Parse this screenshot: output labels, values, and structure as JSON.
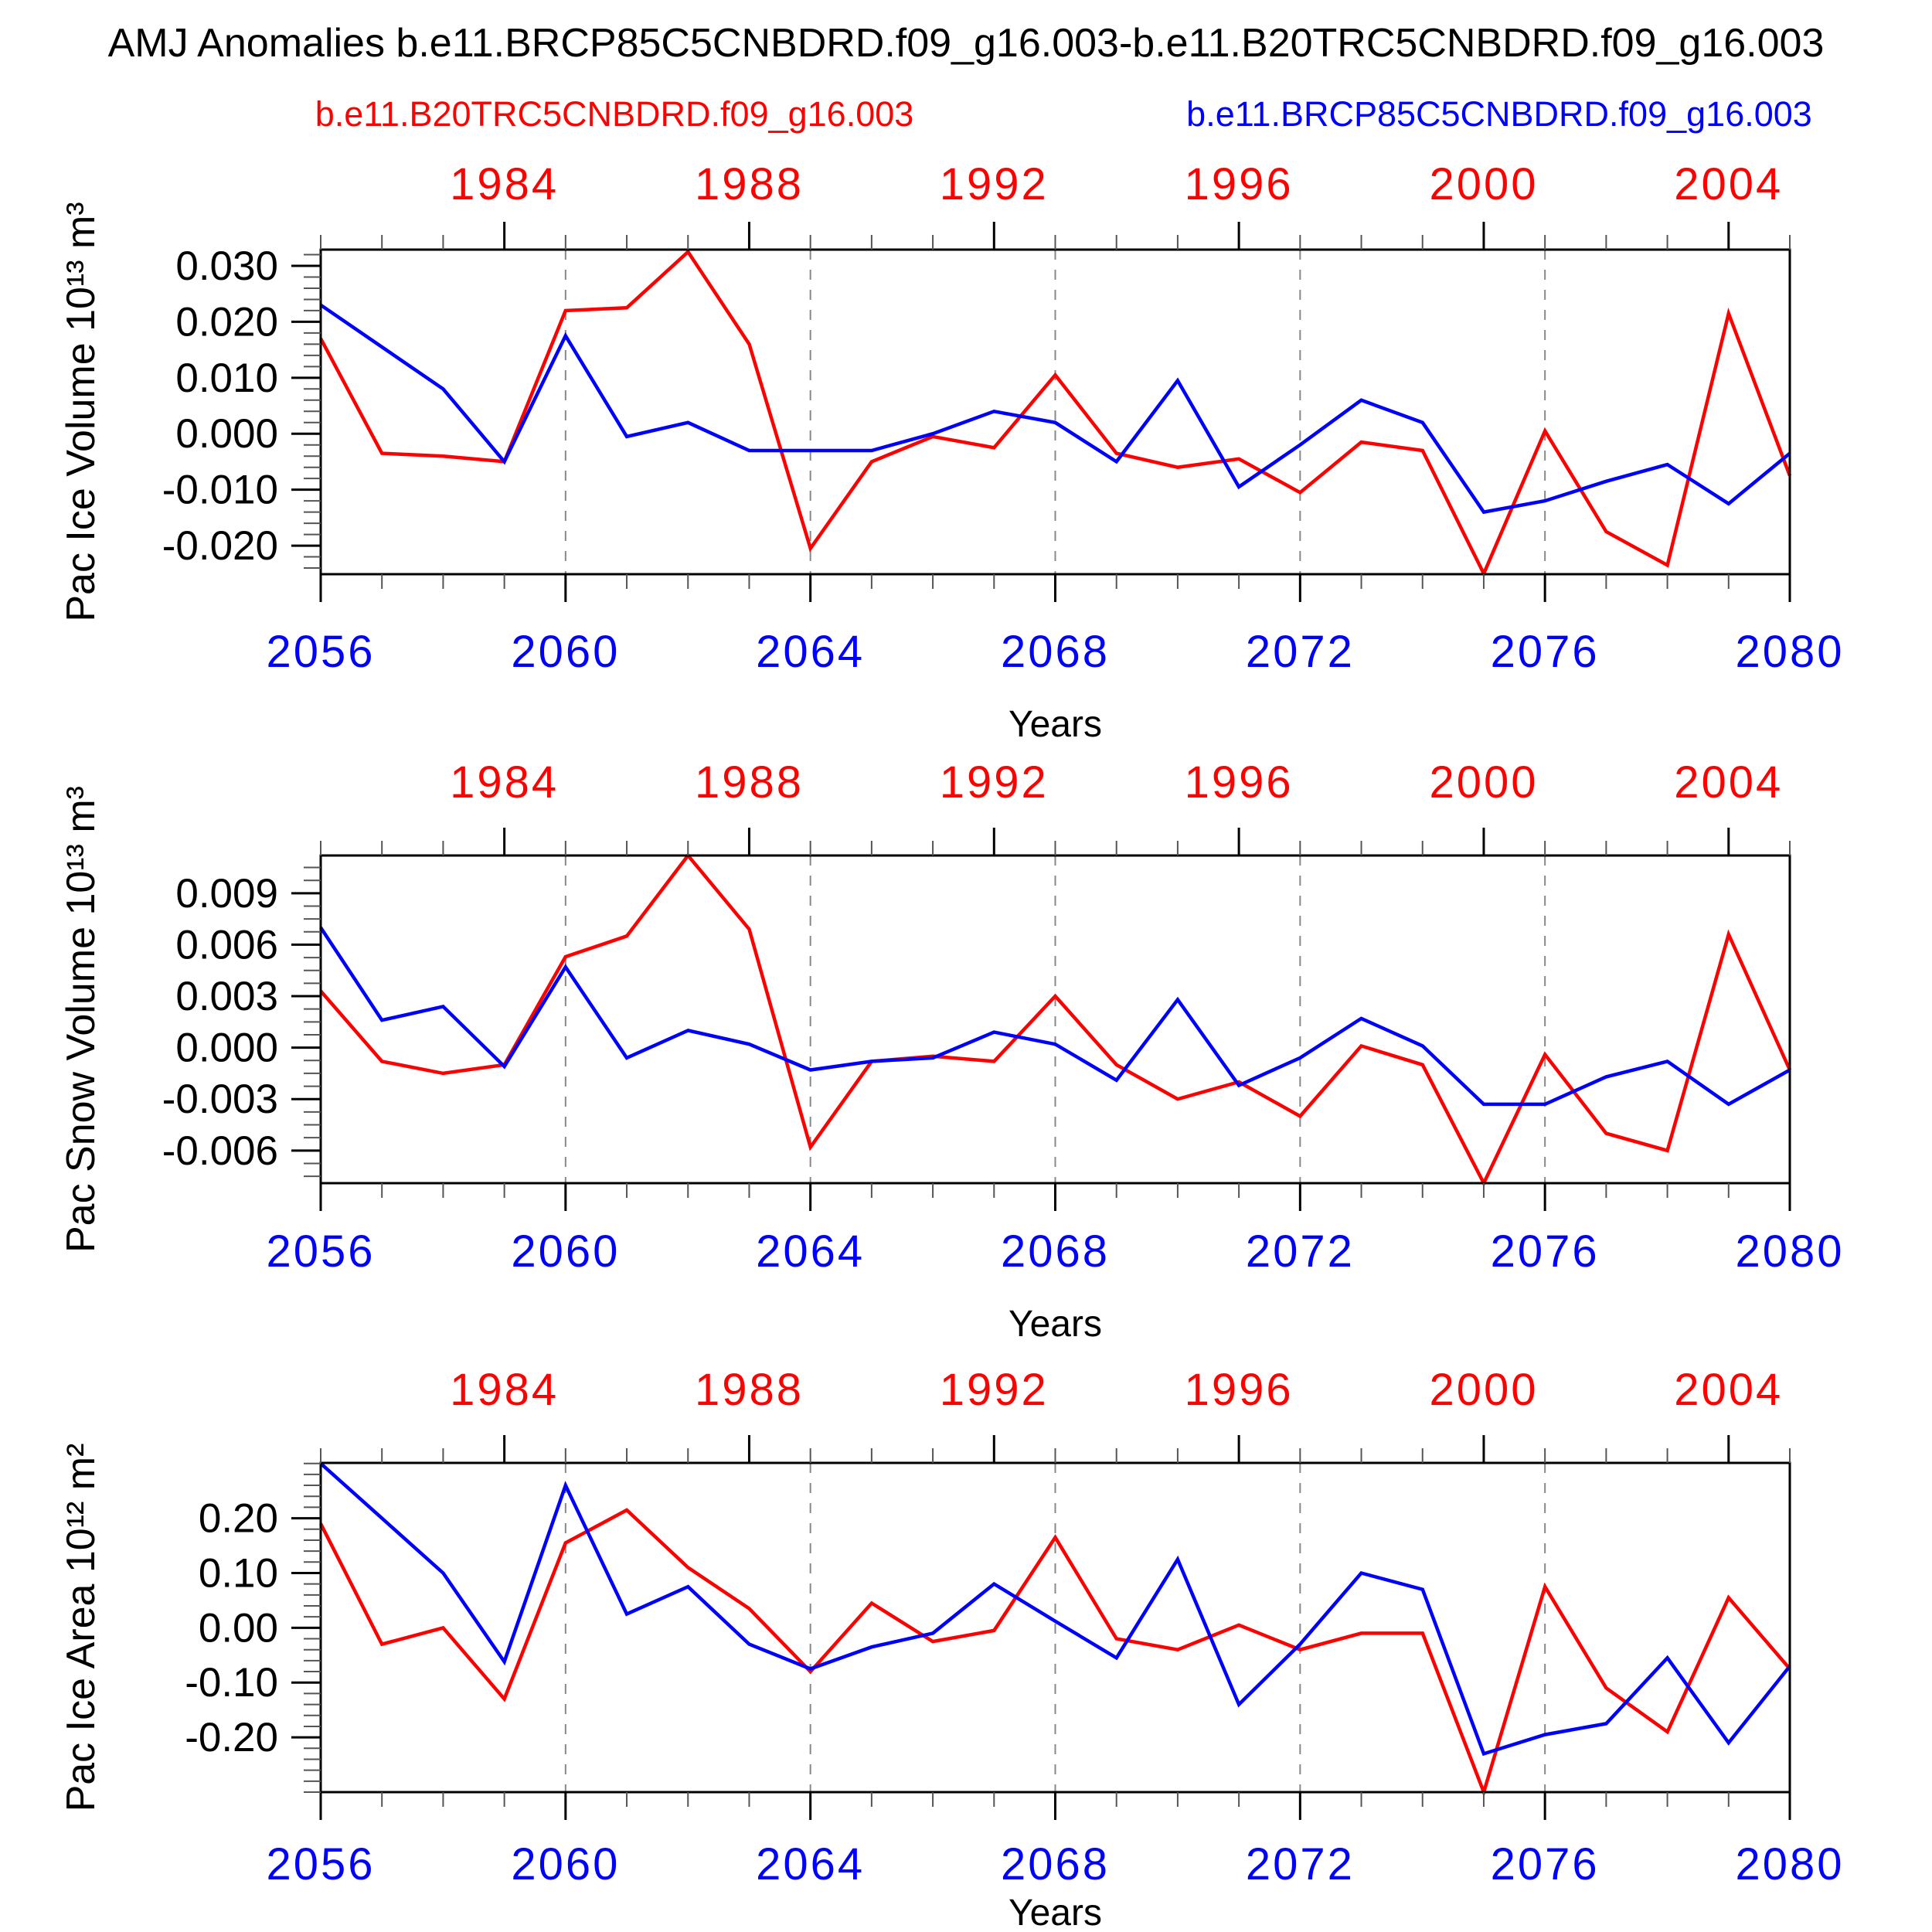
{
  "page": {
    "title": "AMJ Anomalies b.e11.BRCP85C5CNBDRD.f09_g16.003-b.e11.B20TRC5CNBDRD.f09_g16.003",
    "background": "#ffffff"
  },
  "legend": {
    "red": {
      "label": "b.e11.B20TRC5CNBDRD.f09_g16.003",
      "color": "#ff0000"
    },
    "blue": {
      "label": "b.e11.BRCP85C5CNBDRD.f09_g16.003",
      "color": "#0000ff"
    }
  },
  "colors": {
    "grid": "#888888",
    "minor_tick": "#555555",
    "axis": "#000000"
  },
  "chart_data": [
    {
      "type": "line",
      "name": "pac-ice-volume",
      "ylabel": "Pac Ice Volume 10¹³ m³",
      "xlabel": "Years",
      "ylim": [
        -0.0251,
        0.0329
      ],
      "ytick_labels": [
        "0.030",
        "0.020",
        "0.010",
        "0.000",
        "-0.010",
        "-0.020"
      ],
      "ytick_values": [
        0.03,
        0.02,
        0.01,
        0.0,
        -0.01,
        -0.02
      ],
      "y_minor_step": 0.002,
      "x_top": {
        "color": "#ff0000",
        "year_start": 1981,
        "year_end": 2005,
        "tick_labels": [
          "1984",
          "1988",
          "1992",
          "1996",
          "2000",
          "2004"
        ],
        "tick_years": [
          1984,
          1988,
          1992,
          1996,
          2000,
          2004
        ]
      },
      "x_bottom": {
        "color": "#0000ff",
        "year_start": 2056,
        "year_end": 2080,
        "tick_labels": [
          "2056",
          "2060",
          "2064",
          "2068",
          "2072",
          "2076",
          "2080"
        ],
        "tick_years": [
          2056,
          2060,
          2064,
          2068,
          2072,
          2076,
          2080
        ]
      },
      "grid_years": [
        2060,
        2064,
        2068,
        2072,
        2076
      ],
      "series": [
        {
          "name": "b.e11.B20TRC5CNBDRD.f09_g16.003",
          "color": "#ff0000",
          "values": [
            0.017,
            -0.0035,
            -0.004,
            -0.005,
            0.022,
            0.0225,
            0.0325,
            0.016,
            -0.0205,
            -0.005,
            -0.0005,
            -0.0025,
            0.0105,
            -0.0035,
            -0.006,
            -0.0045,
            -0.0105,
            -0.0015,
            -0.003,
            -0.025,
            0.0005,
            -0.0175,
            -0.0235,
            0.0215,
            -0.0075
          ]
        },
        {
          "name": "b.e11.BRCP85C5CNBDRD.f09_g16.003",
          "color": "#0000ff",
          "values": [
            0.023,
            0.0155,
            0.008,
            -0.005,
            0.0175,
            -0.0005,
            0.002,
            -0.003,
            -0.003,
            -0.003,
            0.0,
            0.004,
            0.002,
            -0.005,
            0.0095,
            -0.0095,
            -0.002,
            0.006,
            0.002,
            -0.014,
            -0.012,
            -0.0085,
            -0.0055,
            -0.0125,
            -0.0035
          ]
        }
      ]
    },
    {
      "type": "line",
      "name": "pac-snow-volume",
      "ylabel": "Pac Snow Volume 10¹³ m³",
      "xlabel": "Years",
      "ylim": [
        -0.0079,
        0.0112
      ],
      "ytick_labels": [
        "0.009",
        "0.006",
        "0.003",
        "0.000",
        "-0.003",
        "-0.006"
      ],
      "ytick_values": [
        0.009,
        0.006,
        0.003,
        0.0,
        -0.003,
        -0.006
      ],
      "y_minor_step": 0.00075,
      "x_top": {
        "color": "#ff0000",
        "year_start": 1981,
        "year_end": 2005,
        "tick_labels": [
          "1984",
          "1988",
          "1992",
          "1996",
          "2000",
          "2004"
        ],
        "tick_years": [
          1984,
          1988,
          1992,
          1996,
          2000,
          2004
        ]
      },
      "x_bottom": {
        "color": "#0000ff",
        "year_start": 2056,
        "year_end": 2080,
        "tick_labels": [
          "2056",
          "2060",
          "2064",
          "2068",
          "2072",
          "2076",
          "2080"
        ],
        "tick_years": [
          2056,
          2060,
          2064,
          2068,
          2072,
          2076,
          2080
        ]
      },
      "grid_years": [
        2060,
        2064,
        2068,
        2072,
        2076
      ],
      "series": [
        {
          "name": "b.e11.B20TRC5CNBDRD.f09_g16.003",
          "color": "#ff0000",
          "values": [
            0.0033,
            -0.0008,
            -0.0015,
            -0.001,
            0.0053,
            0.0065,
            0.0112,
            0.0069,
            -0.0058,
            -0.0008,
            -0.0005,
            -0.0008,
            0.003,
            -0.001,
            -0.003,
            -0.002,
            -0.004,
            0.0001,
            -0.001,
            -0.0079,
            -0.0004,
            -0.005,
            -0.006,
            0.0066,
            -0.0013
          ]
        },
        {
          "name": "b.e11.BRCP85C5CNBDRD.f09_g16.003",
          "color": "#0000ff",
          "values": [
            0.007,
            0.0016,
            0.0024,
            -0.0011,
            0.0047,
            -0.0006,
            0.001,
            0.0002,
            -0.0013,
            -0.0008,
            -0.0006,
            0.0009,
            0.0002,
            -0.0019,
            0.0028,
            -0.0022,
            -0.0006,
            0.0017,
            0.0001,
            -0.0033,
            -0.0033,
            -0.0017,
            -0.0008,
            -0.0033,
            -0.0013
          ]
        }
      ]
    },
    {
      "type": "line",
      "name": "pac-ice-area",
      "ylabel": "Pac Ice Area 10¹² m²",
      "xlabel": "Years",
      "ylim": [
        -0.3,
        0.301
      ],
      "ytick_labels": [
        "0.20",
        "0.10",
        "0.00",
        "-0.10",
        "-0.20"
      ],
      "ytick_values": [
        0.2,
        0.1,
        0.0,
        -0.1,
        -0.2
      ],
      "y_minor_step": 0.02,
      "x_top": {
        "color": "#ff0000",
        "year_start": 1981,
        "year_end": 2005,
        "tick_labels": [
          "1984",
          "1988",
          "1992",
          "1996",
          "2000",
          "2004"
        ],
        "tick_years": [
          1984,
          1988,
          1992,
          1996,
          2000,
          2004
        ]
      },
      "x_bottom": {
        "color": "#0000ff",
        "year_start": 2056,
        "year_end": 2080,
        "tick_labels": [
          "2056",
          "2060",
          "2064",
          "2068",
          "2072",
          "2076",
          "2080"
        ],
        "tick_years": [
          2056,
          2060,
          2064,
          2068,
          2072,
          2076,
          2080
        ]
      },
      "grid_years": [
        2060,
        2064,
        2068,
        2072,
        2076
      ],
      "series": [
        {
          "name": "b.e11.B20TRC5CNBDRD.f09_g16.003",
          "color": "#ff0000",
          "values": [
            0.19,
            -0.03,
            0.0,
            -0.13,
            0.155,
            0.215,
            0.11,
            0.035,
            -0.08,
            0.045,
            -0.025,
            -0.005,
            0.165,
            -0.02,
            -0.04,
            0.005,
            -0.04,
            -0.01,
            -0.01,
            -0.3,
            0.075,
            -0.11,
            -0.19,
            0.055,
            -0.075
          ]
        },
        {
          "name": "b.e11.BRCP85C5CNBDRD.f09_g16.003",
          "color": "#0000ff",
          "values": [
            0.3,
            0.2,
            0.1,
            -0.062,
            0.26,
            0.025,
            0.075,
            -0.03,
            -0.075,
            -0.035,
            -0.01,
            0.08,
            0.012,
            -0.055,
            0.125,
            -0.14,
            -0.03,
            0.1,
            0.07,
            -0.23,
            -0.195,
            -0.175,
            -0.055,
            -0.21,
            -0.07
          ]
        }
      ]
    }
  ]
}
